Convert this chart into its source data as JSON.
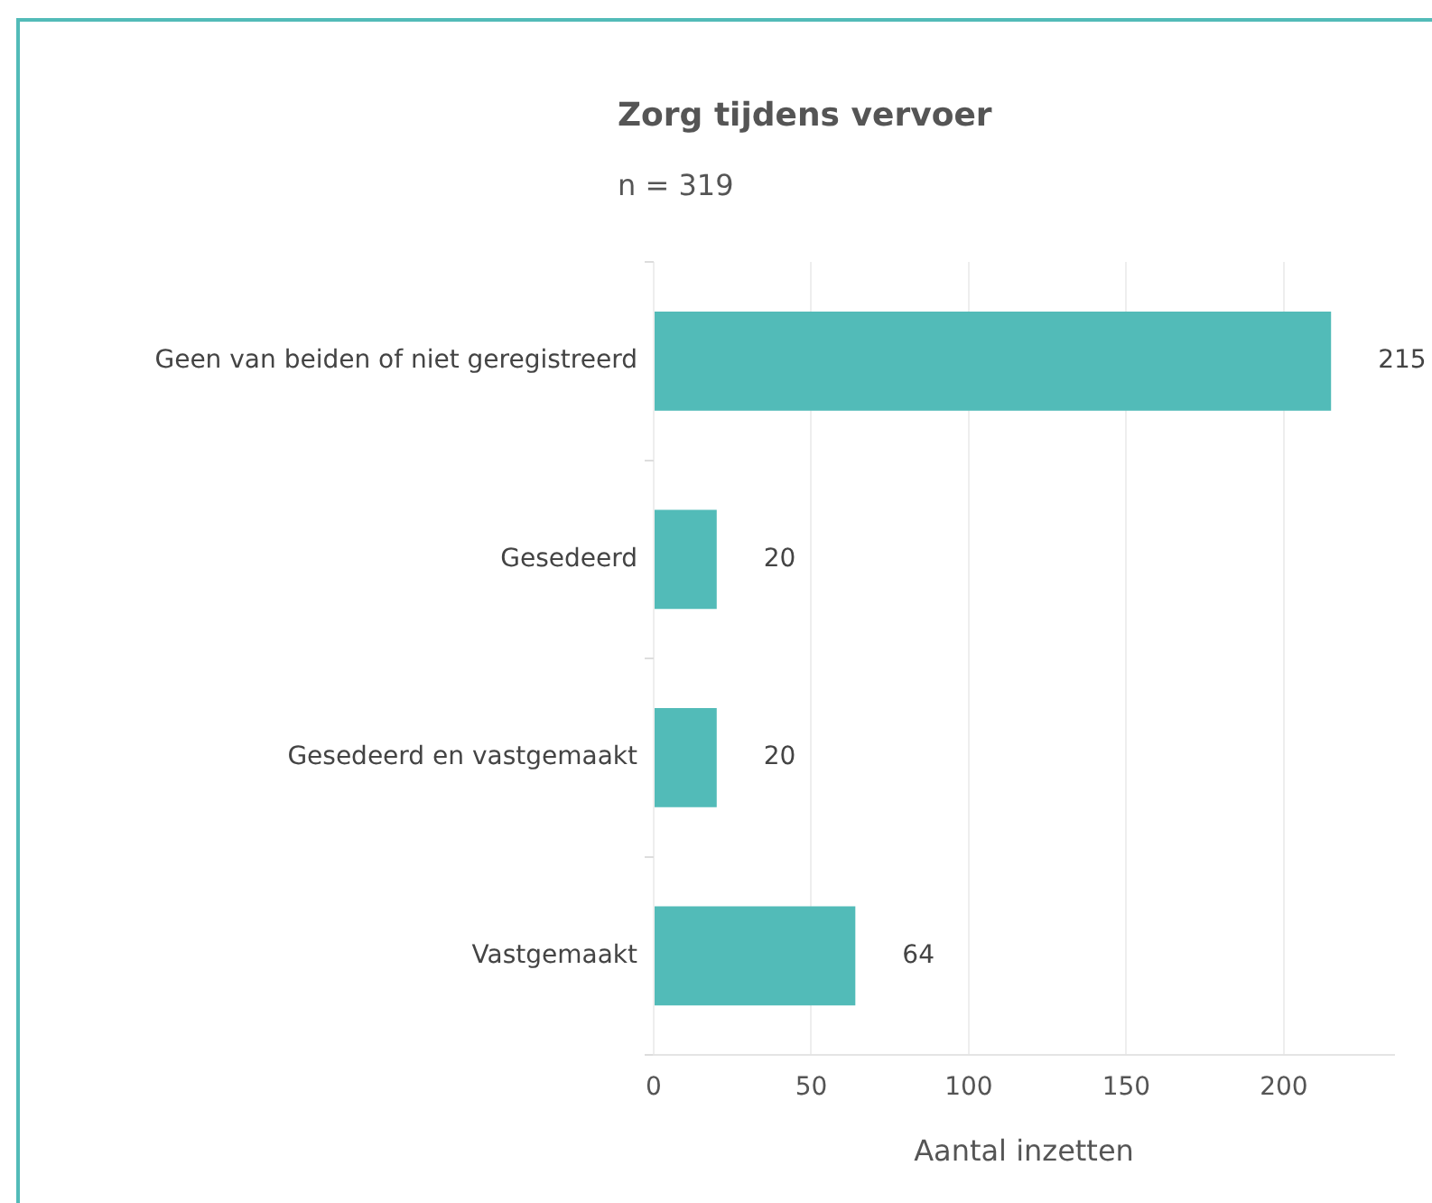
{
  "chart_data": {
    "type": "bar",
    "orientation": "horizontal",
    "title": "Zorg tijdens vervoer",
    "subtitle": "n = 319",
    "xlabel": "Aantal inzetten",
    "categories": [
      "Geen van beiden of niet geregistreerd",
      "Gesedeerd",
      "Gesedeerd en vastgemaakt",
      "Vastgemaakt"
    ],
    "values": [
      215,
      20,
      20,
      64
    ],
    "color": "#52bbb8",
    "xlim": [
      0,
      235
    ],
    "xticks": [
      0,
      50,
      100,
      150,
      200
    ],
    "grid": "x",
    "data_labels": true,
    "legend": false
  }
}
